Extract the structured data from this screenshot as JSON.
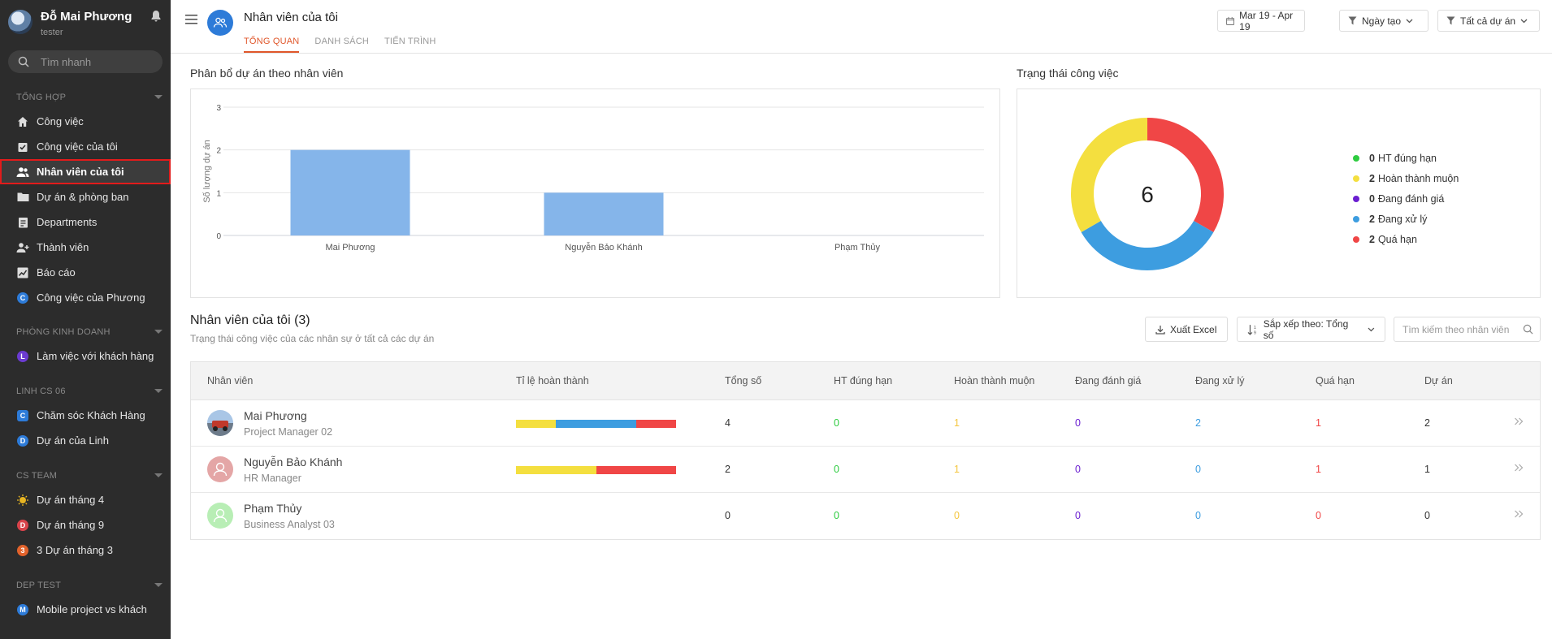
{
  "user": {
    "name": "Đỗ Mai Phương",
    "role": "tester"
  },
  "search": {
    "placeholder": "Tìm nhanh"
  },
  "sidebar": {
    "sections": [
      {
        "title": "TỔNG HỢP",
        "items": [
          {
            "label": "Công việc",
            "icon": "home-icon"
          },
          {
            "label": "Công việc của tôi",
            "icon": "task-icon"
          },
          {
            "label": "Nhân viên của tôi",
            "icon": "people-icon",
            "active": true
          },
          {
            "label": "Dự án & phòng ban",
            "icon": "folder-icon"
          },
          {
            "label": "Departments",
            "icon": "clipboard-icon"
          },
          {
            "label": "Thành viên",
            "icon": "add-user-icon"
          },
          {
            "label": "Báo cáo",
            "icon": "chart-icon"
          },
          {
            "label": "Công việc của Phương",
            "icon": "letter-badge",
            "badge": "C",
            "color": "#2d7bd8"
          }
        ]
      },
      {
        "title": "PHÒNG KINH DOANH",
        "items": [
          {
            "label": "Làm việc với khách hàng",
            "badge": "L",
            "color": "#6b3bd1"
          }
        ]
      },
      {
        "title": "LINH CS 06",
        "items": [
          {
            "label": "Chăm sóc Khách Hàng",
            "badge": "C",
            "color": "#2d7bd8"
          },
          {
            "label": "Dự án của Linh",
            "badge": "D",
            "color": "#2d7bd8"
          }
        ]
      },
      {
        "title": "CS TEAM",
        "items": [
          {
            "label": "Dự án tháng 4",
            "badge": "sun",
            "color": "#e6b422"
          },
          {
            "label": "Dự án tháng 9",
            "badge": "D",
            "color": "#d9434b"
          },
          {
            "label": "3 Dự án tháng 3",
            "badge": "3",
            "color": "#e2622b"
          }
        ]
      },
      {
        "title": "DEP TEST",
        "items": [
          {
            "label": "Mobile project vs khách",
            "badge": "M",
            "color": "#2d7bd8"
          }
        ]
      }
    ]
  },
  "header": {
    "title": "Nhân viên của tôi",
    "tabs": [
      "TỔNG QUAN",
      "DANH SÁCH",
      "TIẾN TRÌNH"
    ],
    "date_range": "Mar 19 - Apr 19",
    "sort_filter": "Ngày tạo",
    "project_filter": "Tất cả dự án"
  },
  "bar_card": {
    "title": "Phân bổ dự án theo nhân viên"
  },
  "donut_card": {
    "title": "Trạng thái công việc",
    "total": "6"
  },
  "chart_data": [
    {
      "type": "bar",
      "title": "Phân bổ dự án theo nhân viên",
      "categories": [
        "Mai Phương",
        "Nguyễn Bảo Khánh",
        "Phạm Thủy"
      ],
      "values": [
        2,
        1,
        0
      ],
      "xlabel": "",
      "ylabel": "Số lượng dự án",
      "ylim": [
        0,
        3
      ],
      "yticks": [
        "0",
        "1",
        "2",
        "3"
      ],
      "grid": true,
      "color": "#85b5ea"
    },
    {
      "type": "pie",
      "title": "Trạng thái công việc",
      "center_label": "6",
      "series": [
        {
          "name": "HT đúng hạn",
          "value": 0,
          "color": "#2ecc40"
        },
        {
          "name": "Hoàn thành muộn",
          "value": 2,
          "color": "#f4df3f"
        },
        {
          "name": "Đang đánh giá",
          "value": 0,
          "color": "#6b1fd1"
        },
        {
          "name": "Đang xử lý",
          "value": 2,
          "color": "#3d9de0"
        },
        {
          "name": "Quá hạn",
          "value": 2,
          "color": "#f04646"
        }
      ],
      "legend": "right"
    }
  ],
  "employees": {
    "title": "Nhân viên của tôi (3)",
    "subtitle": "Trạng thái công việc của các nhân sự ở tất cả các dự án",
    "export_label": "Xuất Excel",
    "sort_label": "Sắp xếp theo: Tổng số",
    "search_placeholder": "Tìm kiếm theo nhân viên",
    "columns": [
      "Nhân viên",
      "Tỉ lệ hoàn thành",
      "Tổng số",
      "HT đúng hạn",
      "Hoàn thành muộn",
      "Đang đánh giá",
      "Đang xử lý",
      "Quá hạn",
      "Dự án"
    ],
    "rows": [
      {
        "name": "Mai Phương",
        "job": "Project Manager 02",
        "avatar": "photo",
        "total": "4",
        "on_time": "0",
        "late": "1",
        "review": "0",
        "processing": "2",
        "overdue": "1",
        "projects": "2",
        "progress": [
          {
            "fraction": 0.25,
            "color": "#f4df3f"
          },
          {
            "fraction": 0.5,
            "color": "#3d9de0"
          },
          {
            "fraction": 0.25,
            "color": "#f04646"
          }
        ]
      },
      {
        "name": "Nguyễn Bảo Khánh",
        "job": "HR Manager",
        "avatar": "#e4a6a6",
        "total": "2",
        "on_time": "0",
        "late": "1",
        "review": "0",
        "processing": "0",
        "overdue": "1",
        "projects": "1",
        "progress": [
          {
            "fraction": 0.5,
            "color": "#f4df3f"
          },
          {
            "fraction": 0.5,
            "color": "#f04646"
          }
        ]
      },
      {
        "name": "Phạm Thủy",
        "job": "Business Analyst 03",
        "avatar": "#b8eeb5",
        "total": "0",
        "on_time": "0",
        "late": "0",
        "review": "0",
        "processing": "0",
        "overdue": "0",
        "projects": "0",
        "progress": []
      }
    ]
  },
  "colors": {
    "on_time": "#2ecc40",
    "late": "#f4c63f",
    "review": "#6b1fd1",
    "processing": "#3d9de0",
    "overdue": "#f04646",
    "accent": "#e0572b"
  }
}
